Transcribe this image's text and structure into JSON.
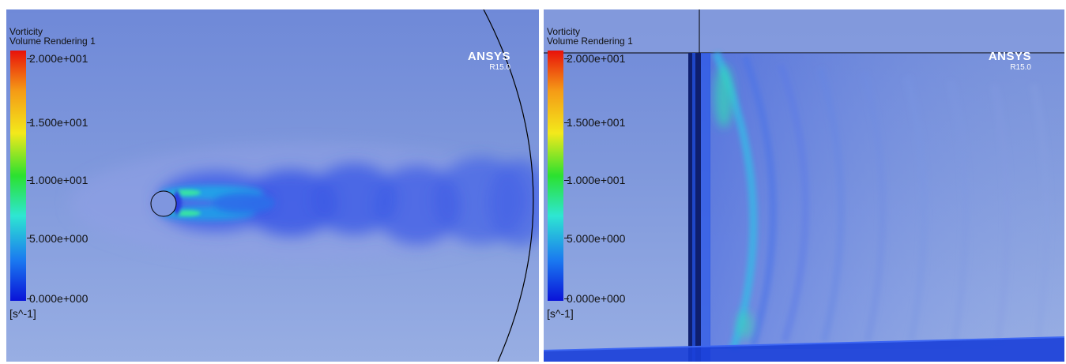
{
  "left_view": {
    "legend": {
      "title": "Vorticity",
      "subtitle": "Volume Rendering 1",
      "ticks": [
        "2.000e+001",
        "1.500e+001",
        "1.000e+001",
        "5.000e+000",
        "0.000e+000"
      ],
      "unit": "[s^-1]"
    },
    "brand": "ANSYS",
    "version": "R15.0"
  },
  "right_view": {
    "legend": {
      "title": "Vorticity",
      "subtitle": "Volume Rendering 1",
      "ticks": [
        "2.000e+001",
        "1.500e+001",
        "1.000e+001",
        "5.000e+000",
        "0.000e+000"
      ],
      "unit": "[s^-1]"
    },
    "brand": "ANSYS",
    "version": "R15.0"
  },
  "colors": {
    "background_top": "#6f89d8",
    "background_bottom": "#98aee3",
    "colormap": [
      "#0a13d8",
      "#1a78f0",
      "#2ee6d2",
      "#2be12f",
      "#f3e91b",
      "#f59a16",
      "#e8110a"
    ]
  }
}
